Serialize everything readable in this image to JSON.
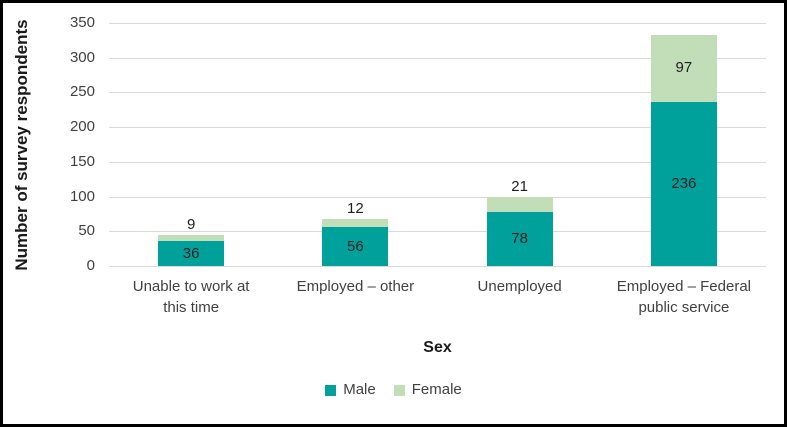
{
  "chart": {
    "background_color": "#FFFFFF",
    "frame_border_color": "#000000",
    "gridline_color": "#D9D9D9",
    "axis_text_color": "#404040",
    "data_label_color": "#1F1F1F"
  },
  "chart_data": {
    "type": "bar",
    "stacked": true,
    "title": "",
    "categories": [
      "Unable to work at this time",
      "Employed – other",
      "Unemployed",
      "Employed – Federal public service"
    ],
    "category_label_lines": [
      [
        "Unable to work at",
        "this time"
      ],
      [
        "Employed – other"
      ],
      [
        "Unemployed"
      ],
      [
        "Employed – Federal",
        "public service"
      ]
    ],
    "series": [
      {
        "name": "Male",
        "color": "#00A19B",
        "values": [
          36,
          56,
          78,
          236
        ]
      },
      {
        "name": "Female",
        "color": "#C1DEB8",
        "values": [
          9,
          12,
          21,
          97
        ]
      }
    ],
    "xlabel": "Sex",
    "ylabel": "Number of survey respondents",
    "ylim": [
      0,
      350
    ],
    "yticks": [
      0,
      50,
      100,
      150,
      200,
      250,
      300,
      350
    ],
    "grid": true,
    "legend_position": "bottom"
  }
}
